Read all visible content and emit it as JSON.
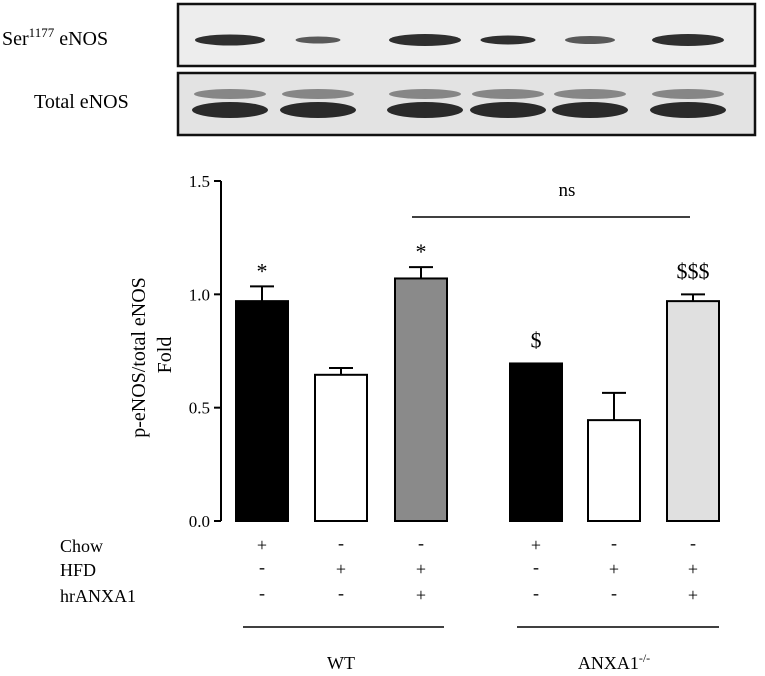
{
  "blot": {
    "row1_label": "Ser",
    "row1_sup": "1177",
    "row1_suffix": " eNOS",
    "row2_label": "Total eNOS"
  },
  "chart_data": {
    "type": "bar",
    "ylabel_line1": "p-eNOS/total eNOS",
    "ylabel_line2": "Fold",
    "ylim": [
      0.0,
      1.5
    ],
    "yticks": [
      0.0,
      0.5,
      1.0,
      1.5
    ],
    "ytick_labels": [
      "0.0",
      "0.5",
      "1.0",
      "1.5"
    ],
    "bars": [
      {
        "value": 0.97,
        "error": 0.065,
        "fill": "#000000",
        "sig": "*"
      },
      {
        "value": 0.645,
        "error": 0.03,
        "fill": "#ffffff",
        "sig": ""
      },
      {
        "value": 1.07,
        "error": 0.05,
        "fill": "#8a8a8a",
        "sig": "*"
      },
      {
        "value": 0.695,
        "error": 0.0,
        "fill": "#000000",
        "sig": "$"
      },
      {
        "value": 0.445,
        "error": 0.12,
        "fill": "#ffffff",
        "sig": ""
      },
      {
        "value": 0.97,
        "error": 0.03,
        "fill": "#e0e0e0",
        "sig": "$$$"
      }
    ],
    "comparison_label": "ns",
    "conditions": [
      {
        "name": "Chow",
        "signs": [
          "+",
          "-",
          "-",
          "+",
          "-",
          "-"
        ]
      },
      {
        "name": "HFD",
        "signs": [
          "-",
          "+",
          "+",
          "-",
          "+",
          "+"
        ]
      },
      {
        "name": "hrANXA1",
        "signs": [
          "-",
          "-",
          "+",
          "-",
          "-",
          "+"
        ]
      }
    ],
    "groups": [
      {
        "label": "WT",
        "sup": ""
      },
      {
        "label": "ANXA1",
        "sup": "-/-"
      }
    ]
  }
}
